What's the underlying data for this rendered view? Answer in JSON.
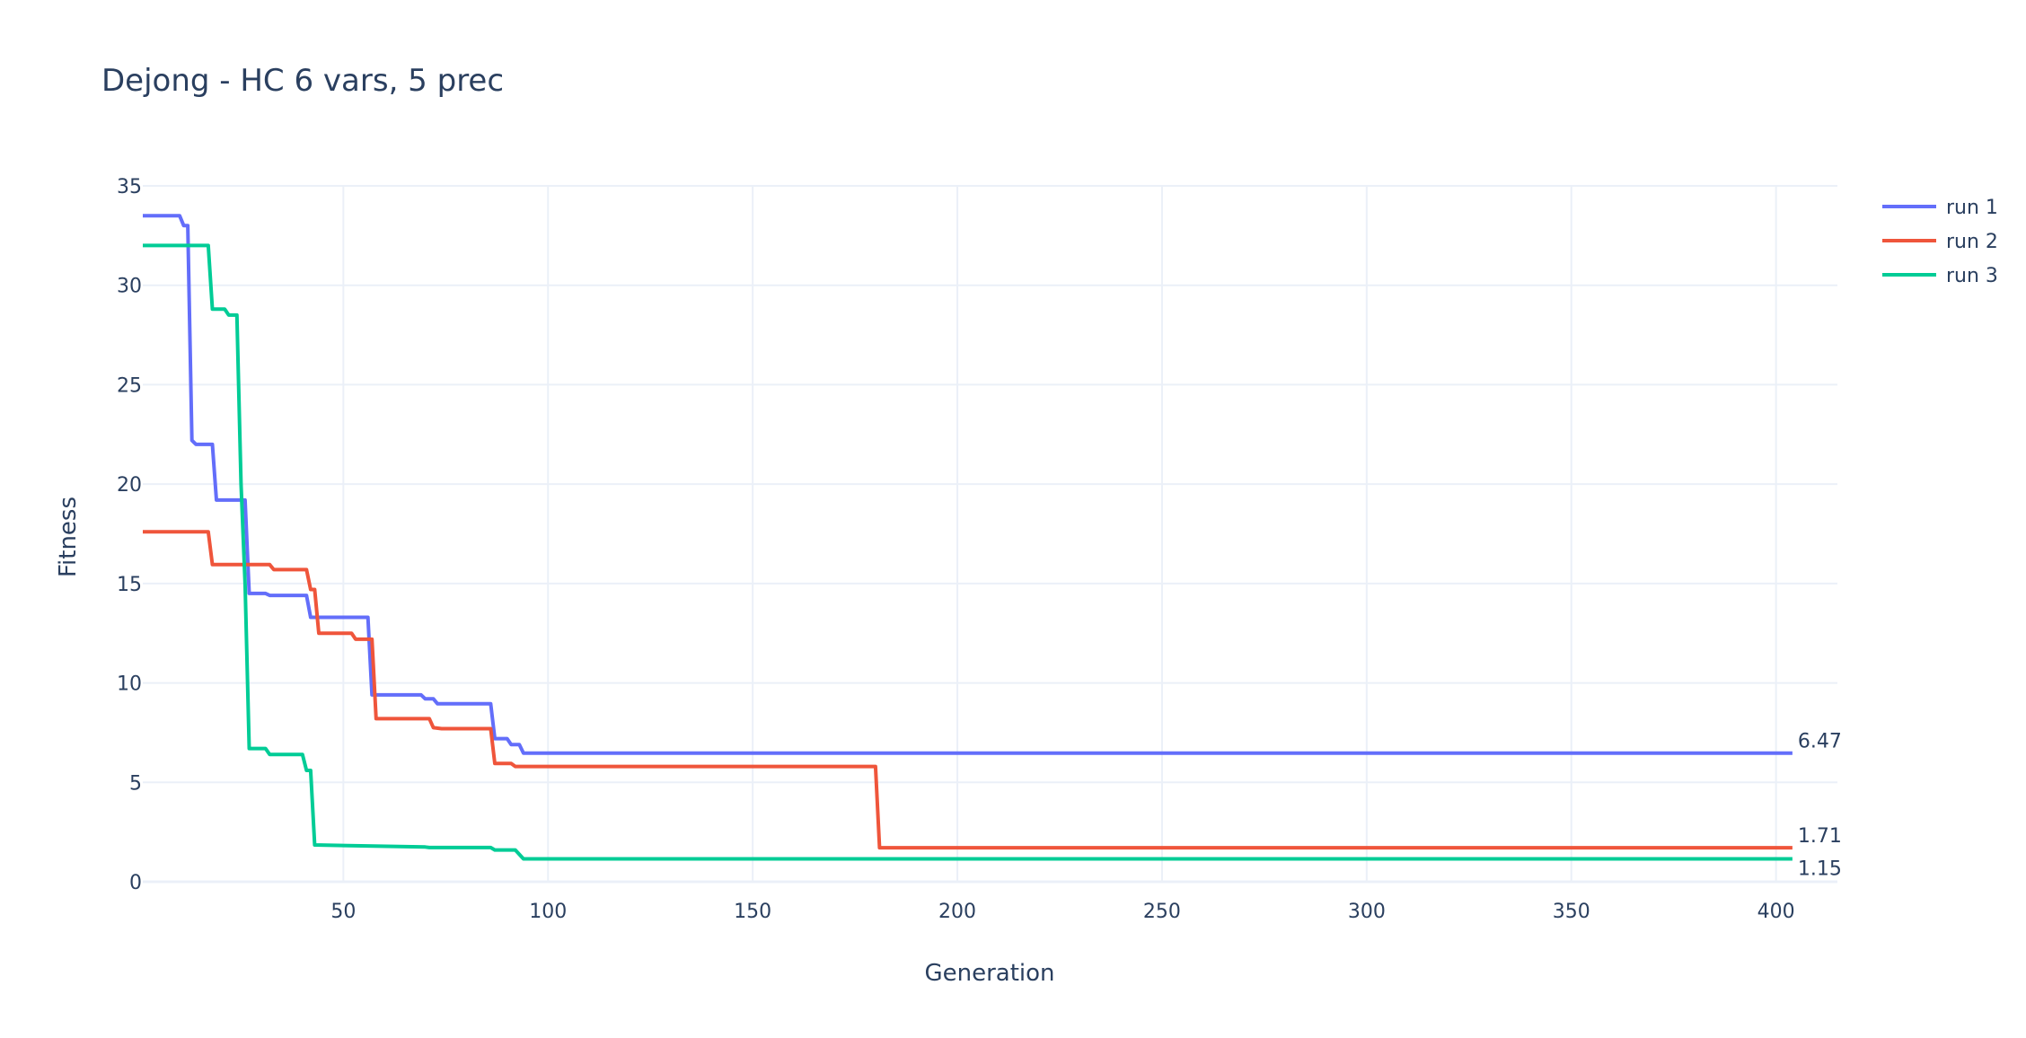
{
  "chart_data": {
    "type": "line",
    "title": "Dejong - HC 6 vars, 5 prec",
    "xlabel": "Generation",
    "ylabel": "Fitness",
    "xlim": [
      1,
      415
    ],
    "ylim": [
      0,
      35
    ],
    "xticks": [
      50,
      100,
      150,
      200,
      250,
      300,
      350,
      400
    ],
    "yticks": [
      0,
      5,
      10,
      15,
      20,
      25,
      30,
      35
    ],
    "grid": true,
    "legend_position": "top-right",
    "series": [
      {
        "name": "run 1",
        "color": "#636efa",
        "end_label": "6.47",
        "steps": [
          [
            1,
            33.5
          ],
          [
            10,
            33.5
          ],
          [
            11,
            33.0
          ],
          [
            12,
            33.0
          ],
          [
            13,
            22.2
          ],
          [
            14,
            22.0
          ],
          [
            18,
            22.0
          ],
          [
            19,
            19.2
          ],
          [
            26,
            19.2
          ],
          [
            27,
            14.5
          ],
          [
            31,
            14.5
          ],
          [
            32,
            14.4
          ],
          [
            41,
            14.4
          ],
          [
            42,
            13.3
          ],
          [
            56,
            13.3
          ],
          [
            57,
            9.4
          ],
          [
            69,
            9.4
          ],
          [
            70,
            9.2
          ],
          [
            72,
            9.2
          ],
          [
            73,
            8.95
          ],
          [
            86,
            8.95
          ],
          [
            87,
            7.2
          ],
          [
            90,
            7.2
          ],
          [
            91,
            6.9
          ],
          [
            93,
            6.9
          ],
          [
            94,
            6.47
          ],
          [
            404,
            6.47
          ]
        ]
      },
      {
        "name": "run 2",
        "color": "#ef553b",
        "end_label": "1.71",
        "steps": [
          [
            1,
            17.6
          ],
          [
            17,
            17.6
          ],
          [
            18,
            15.95
          ],
          [
            32,
            15.95
          ],
          [
            33,
            15.7
          ],
          [
            41,
            15.7
          ],
          [
            42,
            14.7
          ],
          [
            43,
            14.7
          ],
          [
            44,
            12.5
          ],
          [
            52,
            12.5
          ],
          [
            53,
            12.2
          ],
          [
            57,
            12.2
          ],
          [
            58,
            8.2
          ],
          [
            71,
            8.2
          ],
          [
            72,
            7.75
          ],
          [
            74,
            7.7
          ],
          [
            86,
            7.7
          ],
          [
            87,
            5.95
          ],
          [
            91,
            5.95
          ],
          [
            92,
            5.8
          ],
          [
            180,
            5.8
          ],
          [
            181,
            1.71
          ],
          [
            404,
            1.71
          ]
        ]
      },
      {
        "name": "run 3",
        "color": "#00cc96",
        "end_label": "1.15",
        "steps": [
          [
            1,
            32.0
          ],
          [
            17,
            32.0
          ],
          [
            18,
            28.8
          ],
          [
            21,
            28.8
          ],
          [
            22,
            28.5
          ],
          [
            24,
            28.5
          ],
          [
            25,
            20.0
          ],
          [
            26,
            15.0
          ],
          [
            27,
            6.7
          ],
          [
            31,
            6.7
          ],
          [
            32,
            6.4
          ],
          [
            40,
            6.4
          ],
          [
            41,
            5.6
          ],
          [
            42,
            5.6
          ],
          [
            43,
            1.85
          ],
          [
            70,
            1.75
          ],
          [
            71,
            1.72
          ],
          [
            86,
            1.72
          ],
          [
            87,
            1.6
          ],
          [
            92,
            1.6
          ],
          [
            94,
            1.15
          ],
          [
            404,
            1.15
          ]
        ]
      }
    ]
  }
}
